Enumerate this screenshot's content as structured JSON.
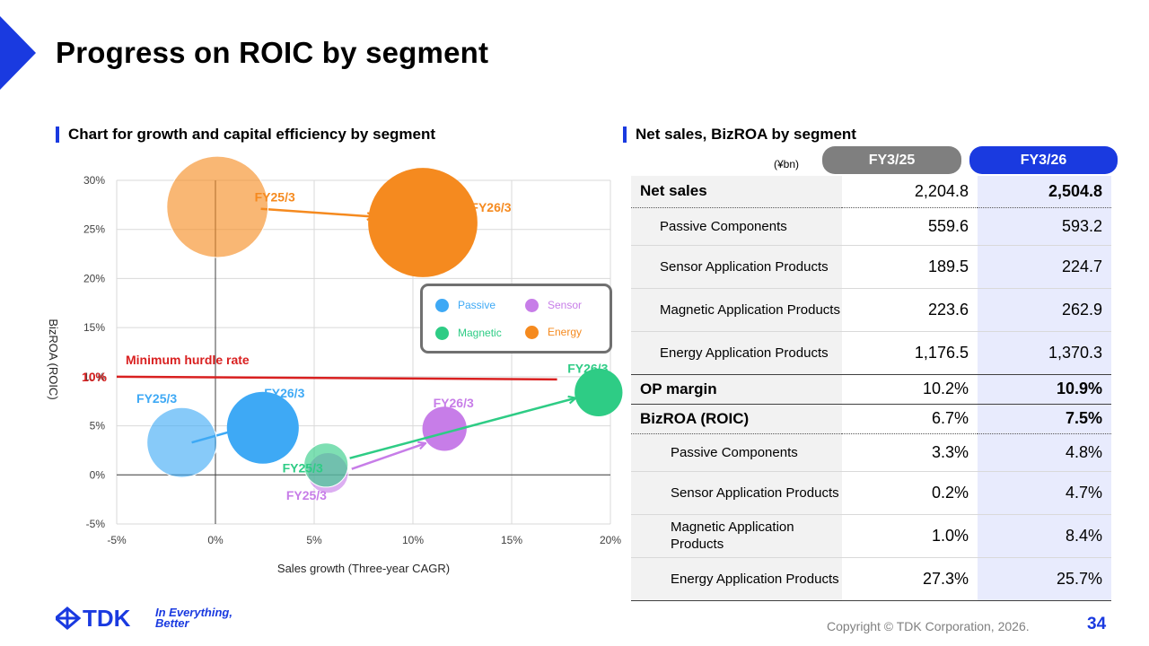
{
  "page": {
    "title": "Progress on ROIC by segment",
    "left_section_title": "Chart for growth and capital efficiency by segment",
    "right_section_title": "Net sales, BizROA by segment",
    "copyright": "Copyright © TDK Corporation, 2026.",
    "page_number": "34",
    "logo_wordmark": "TDK",
    "logo_tagline_1": "In Everything,",
    "logo_tagline_2": "Better"
  },
  "colors": {
    "brand_blue": "#1a3ae0",
    "passive": "#3ea9f5",
    "sensor": "#c77de8",
    "magnetic": "#2ecc85",
    "energy": "#f58a1f",
    "hurdle_red": "#d92020",
    "header_prev": "#7f7f7f"
  },
  "chart_data": {
    "type": "scatter",
    "xlabel": "Sales growth (Three-year CAGR)",
    "ylabel": "BizROA (ROIC)",
    "xlim": [
      -5,
      20
    ],
    "ylim": [
      -5,
      30
    ],
    "x_ticks": [
      -5,
      0,
      5,
      10,
      15,
      20
    ],
    "y_ticks": [
      -5,
      0,
      5,
      10,
      15,
      20,
      25,
      30
    ],
    "x_tick_labels": [
      "-5%",
      "0%",
      "5%",
      "10%",
      "15%",
      "20%"
    ],
    "y_tick_labels": [
      "-5%",
      "0%",
      "5%",
      "10%",
      "15%",
      "20%",
      "25%",
      "30%"
    ],
    "grid": true,
    "legend_position": "center-right",
    "hurdle": {
      "value": 10,
      "label": "Minimum hurdle rate",
      "axis_label": "10%"
    },
    "series": [
      {
        "name": "Passive",
        "color_key": "passive",
        "points": [
          {
            "label": "FY25/3",
            "x": -1.7,
            "y": 3.3,
            "size": 559.6,
            "faded": true
          },
          {
            "label": "FY26/3",
            "x": 2.4,
            "y": 4.8,
            "size": 593.2,
            "faded": false
          }
        ]
      },
      {
        "name": "Sensor",
        "color_key": "sensor",
        "points": [
          {
            "label": "FY25/3",
            "x": 5.7,
            "y": 0.2,
            "size": 189.5,
            "faded": true
          },
          {
            "label": "FY26/3",
            "x": 11.6,
            "y": 4.7,
            "size": 224.7,
            "faded": false
          }
        ]
      },
      {
        "name": "Magnetic",
        "color_key": "magnetic",
        "points": [
          {
            "label": "FY25/3",
            "x": 5.6,
            "y": 1.0,
            "size": 223.6,
            "faded": true
          },
          {
            "label": "FY26/3",
            "x": 19.4,
            "y": 8.4,
            "size": 262.9,
            "faded": false
          }
        ]
      },
      {
        "name": "Energy",
        "color_key": "energy",
        "points": [
          {
            "label": "FY25/3",
            "x": 0.1,
            "y": 27.3,
            "size": 1176.5,
            "faded": true
          },
          {
            "label": "FY26/3",
            "x": 10.5,
            "y": 25.7,
            "size": 1370.3,
            "faded": false
          }
        ]
      }
    ]
  },
  "table": {
    "unit": "(¥bn)",
    "col_prev": "FY3/25",
    "col_cur": "FY3/26",
    "rows": [
      {
        "label": "Net sales",
        "prev": "2,204.8",
        "cur": "2,504.8",
        "kind": "main"
      },
      {
        "label": "Passive Components",
        "prev": "559.6",
        "cur": "593.2",
        "kind": "sub"
      },
      {
        "label": "Sensor Application Products",
        "prev": "189.5",
        "cur": "224.7",
        "kind": "sub"
      },
      {
        "label": "Magnetic Application Products",
        "prev": "223.6",
        "cur": "262.9",
        "kind": "sub"
      },
      {
        "label": "Energy Application Products",
        "prev": "1,176.5",
        "cur": "1,370.3",
        "kind": "sub"
      },
      {
        "label": "OP margin",
        "prev": "10.2%",
        "cur": "10.9%",
        "kind": "main"
      },
      {
        "label": "BizROA (ROIC)",
        "prev": "6.7%",
        "cur": "7.5%",
        "kind": "main"
      },
      {
        "label": "Passive Components",
        "prev": "3.3%",
        "cur": "4.8%",
        "kind": "sub2"
      },
      {
        "label": "Sensor Application Products",
        "prev": "0.2%",
        "cur": "4.7%",
        "kind": "sub2"
      },
      {
        "label": "Magnetic Application Products",
        "prev": "1.0%",
        "cur": "8.4%",
        "kind": "sub2"
      },
      {
        "label": "Energy Application Products",
        "prev": "27.3%",
        "cur": "25.7%",
        "kind": "sub2"
      }
    ]
  }
}
